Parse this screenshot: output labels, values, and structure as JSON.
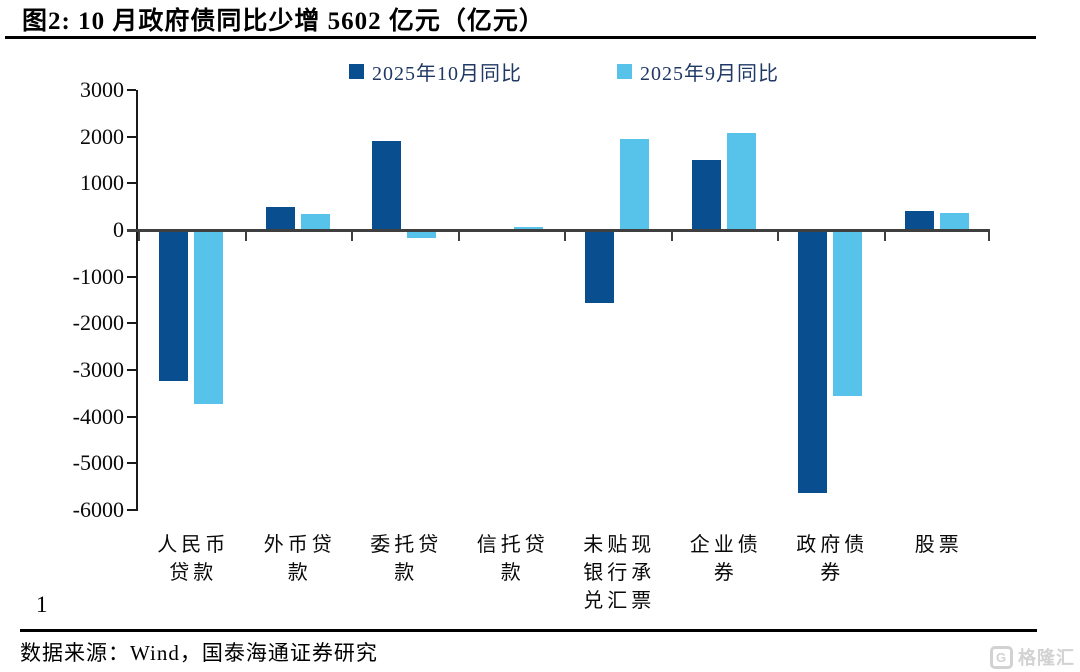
{
  "header": {
    "title": "图2:  10 月政府债同比少增 5602 亿元（亿元）"
  },
  "chart_data": {
    "type": "bar",
    "title": "图2:  10 月政府债同比少增 5602 亿元（亿元）",
    "unit": "亿元",
    "categories": [
      "人民币贷款",
      "外币贷款",
      "委托贷款",
      "信托贷款",
      "未贴现银行承兑汇票",
      "企业债券",
      "政府债券",
      "股票"
    ],
    "category_label_lines": [
      [
        "人民币",
        "贷款"
      ],
      [
        "外币贷",
        "款"
      ],
      [
        "委托贷",
        "款"
      ],
      [
        "信托贷",
        "款"
      ],
      [
        "未贴现",
        "银行承",
        "兑汇票"
      ],
      [
        "企业债",
        "券"
      ],
      [
        "政府债",
        "券"
      ],
      [
        "股票"
      ]
    ],
    "series": [
      {
        "name": "2025年10月同比",
        "color": "#094F8F",
        "values": [
          -3200,
          500,
          1900,
          0,
          -1530,
          1500,
          -5602,
          410
        ]
      },
      {
        "name": "2025年9月同比",
        "color": "#57C3EB",
        "values": [
          -3700,
          350,
          -130,
          60,
          1950,
          2080,
          -3520,
          370
        ]
      }
    ],
    "ylim": [
      -6000,
      3000
    ],
    "yticks": [
      3000,
      2000,
      1000,
      0,
      -1000,
      -2000,
      -3000,
      -4000,
      -5000,
      -6000
    ],
    "xlabel": "",
    "ylabel": "",
    "grid": false,
    "legend_position": "top-center"
  },
  "footer": {
    "page_number": "1",
    "source": "数据来源：Wind，国泰海通证券研究",
    "watermark": "格隆汇",
    "watermark_icon": "G"
  },
  "colors": {
    "series_oct": "#094F8F",
    "series_sep": "#57C3EB",
    "axis_line": "#3F3F3F",
    "legend_text": "#1F3864"
  }
}
